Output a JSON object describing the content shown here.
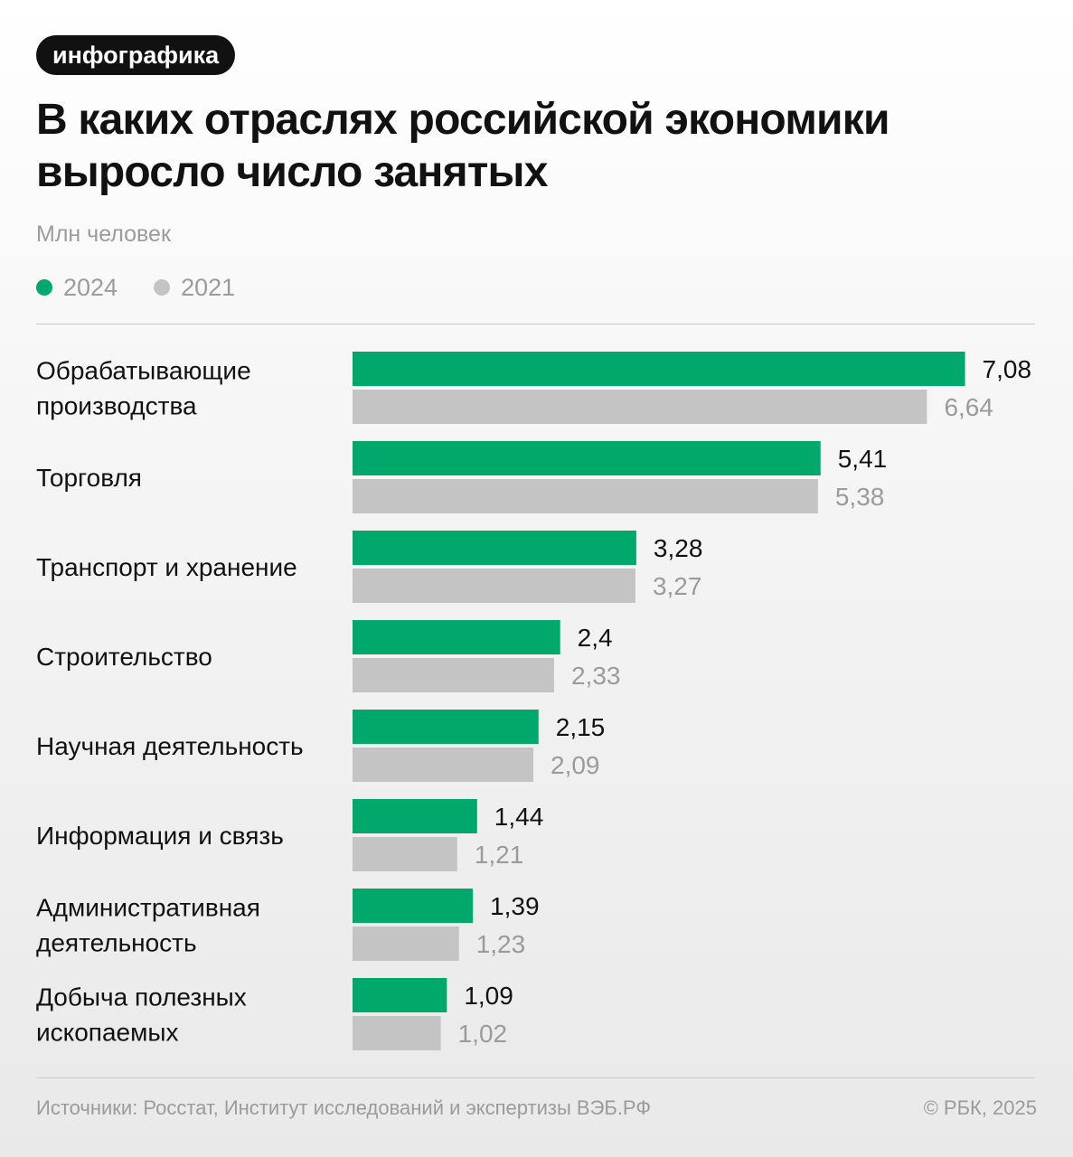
{
  "badge": "инфографика",
  "title": "В каких отраслях российской экономики выросло число занятых",
  "unit": "Млн человек",
  "legend": [
    {
      "label": "2024",
      "color": "#00a86b"
    },
    {
      "label": "2021",
      "color": "#c4c4c4"
    }
  ],
  "chart_data": {
    "type": "bar",
    "orientation": "horizontal",
    "title": "В каких отраслях российской экономики выросло число занятых",
    "ylabel": "Млн человек",
    "categories": [
      [
        "Обрабатывающие",
        "производства"
      ],
      [
        "Торговля"
      ],
      [
        "Транспорт и хранение"
      ],
      [
        "Строительство"
      ],
      [
        "Научная деятельность"
      ],
      [
        "Информация и связь"
      ],
      [
        "Административная",
        "деятельность"
      ],
      [
        "Добыча полезных",
        "ископаемых"
      ]
    ],
    "series": [
      {
        "name": "2024",
        "color": "#00a86b",
        "label_color": "#111111",
        "values": [
          7.08,
          5.41,
          3.28,
          2.4,
          2.15,
          1.44,
          1.39,
          1.09
        ],
        "labels": [
          "7,08",
          "5,41",
          "3,28",
          "2,4",
          "2,15",
          "1,44",
          "1,39",
          "1,09"
        ]
      },
      {
        "name": "2021",
        "color": "#c4c4c4",
        "label_color": "#9b9b9b",
        "values": [
          6.64,
          5.38,
          3.27,
          2.33,
          2.09,
          1.21,
          1.23,
          1.02
        ],
        "labels": [
          "6,64",
          "5,38",
          "3,27",
          "2,33",
          "2,09",
          "1,21",
          "1,23",
          "1,02"
        ]
      }
    ],
    "grid": false,
    "legend_position": "top-left"
  },
  "footer": {
    "source": "Источники: Росстат, Институт исследований и экспертизы ВЭБ.РФ",
    "copyright": "© РБК, 2025"
  }
}
